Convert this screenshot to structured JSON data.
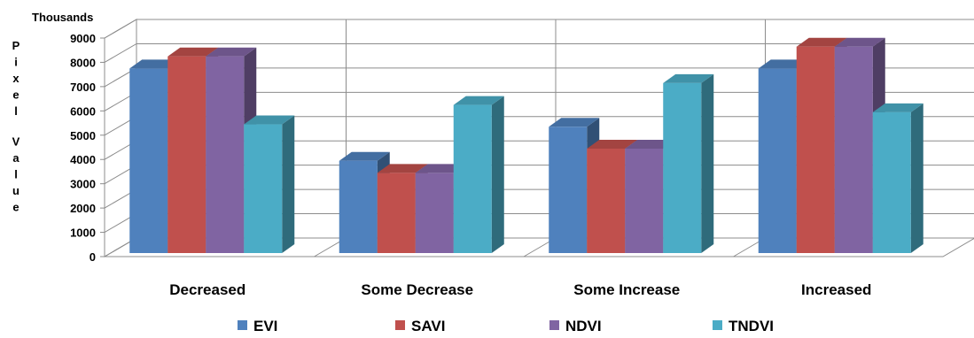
{
  "chart_data": {
    "type": "bar",
    "title": "",
    "unit_label": "Thousands",
    "ylabel": "Pixel Value",
    "xlabel": "",
    "categories": [
      "Decreased",
      "Some Decrease",
      "Some Increase",
      "Increased"
    ],
    "series": [
      {
        "name": "EVI",
        "values": [
          7600,
          3800,
          5200,
          7600
        ],
        "color": "#4F81BD"
      },
      {
        "name": "SAVI",
        "values": [
          8100,
          3300,
          4300,
          8500
        ],
        "color": "#C0504D"
      },
      {
        "name": "NDVI",
        "values": [
          8100,
          3300,
          4300,
          8500
        ],
        "color": "#8064A2"
      },
      {
        "name": "TNDVI",
        "values": [
          5300,
          6100,
          7000,
          5800
        ],
        "color": "#4BACC6"
      }
    ],
    "ylim": [
      0,
      9000
    ],
    "yticks": [
      "0",
      "1000",
      "2000",
      "3000",
      "4000",
      "5000",
      "6000",
      "7000",
      "8000",
      "9000"
    ],
    "grid": true,
    "legend_position": "bottom",
    "style": "3d-clustered-column"
  }
}
